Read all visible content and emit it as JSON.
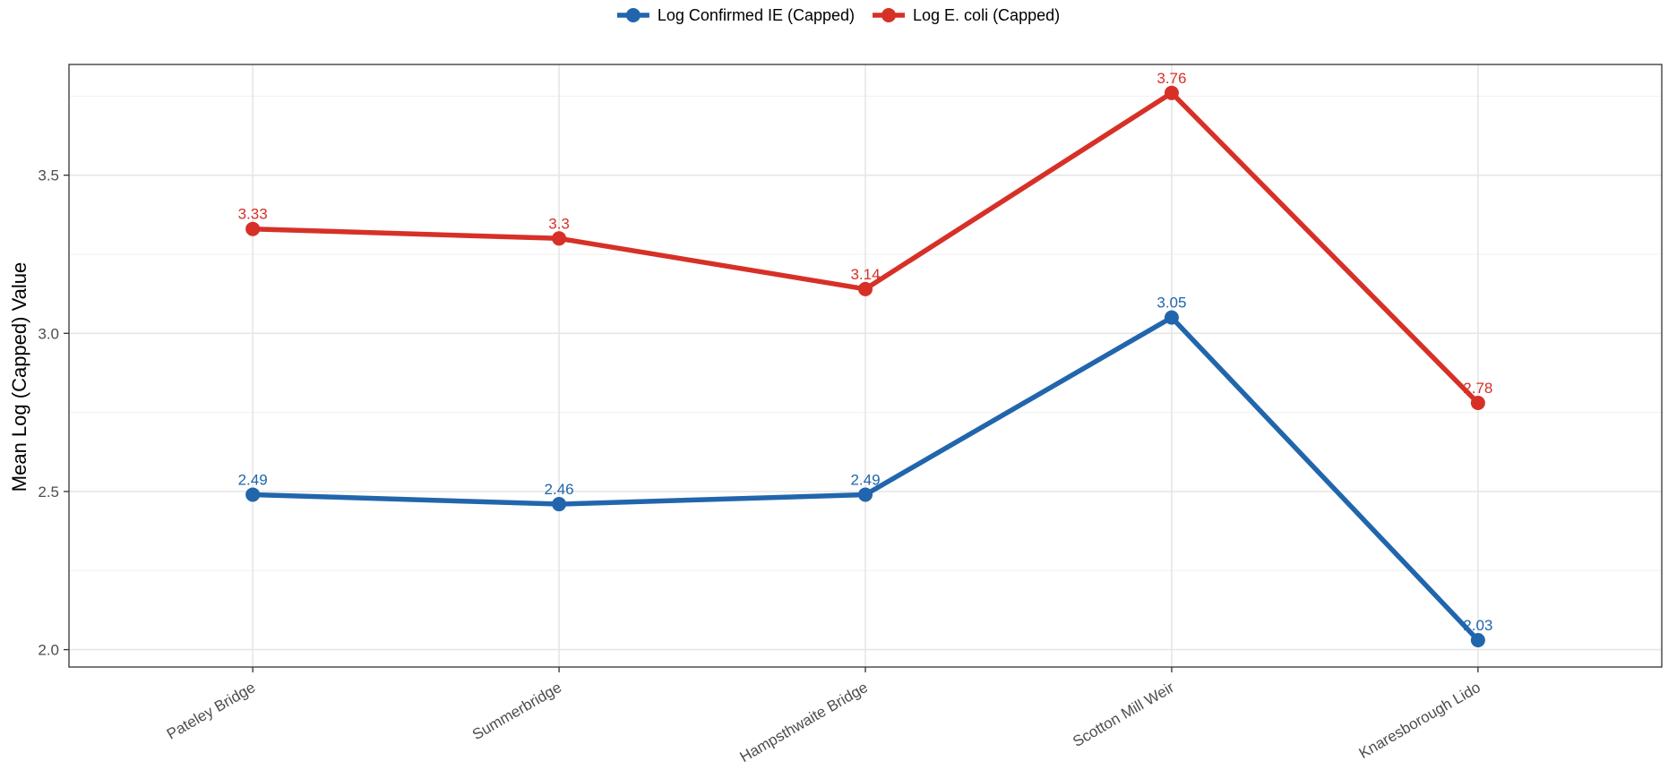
{
  "chart_data": {
    "type": "line",
    "categories": [
      "Pateley Bridge",
      "Summerbridge",
      "Hampsthwaite Bridge",
      "Scotton Mill Weir",
      "Knaresborough Lido"
    ],
    "series": [
      {
        "name": "Log Confirmed IE (Capped)",
        "color": "#2166ac",
        "values": [
          2.49,
          2.46,
          2.49,
          3.05,
          2.03
        ],
        "labels": [
          "2.49",
          "2.46",
          "2.49",
          "3.05",
          "2.03"
        ]
      },
      {
        "name": "Log E. coli (Capped)",
        "color": "#d73027",
        "values": [
          3.33,
          3.3,
          3.14,
          3.76,
          2.78
        ],
        "labels": [
          "3.33",
          "3.3",
          "3.14",
          "3.76",
          "2.78"
        ]
      }
    ],
    "ylabel": "Mean Log (Capped) Value",
    "xlabel": "",
    "ylim": [
      1.945,
      3.85
    ],
    "yticks": [
      "2.0",
      "2.5",
      "3.0",
      "3.5"
    ],
    "grid": true,
    "legend_position": "top"
  }
}
